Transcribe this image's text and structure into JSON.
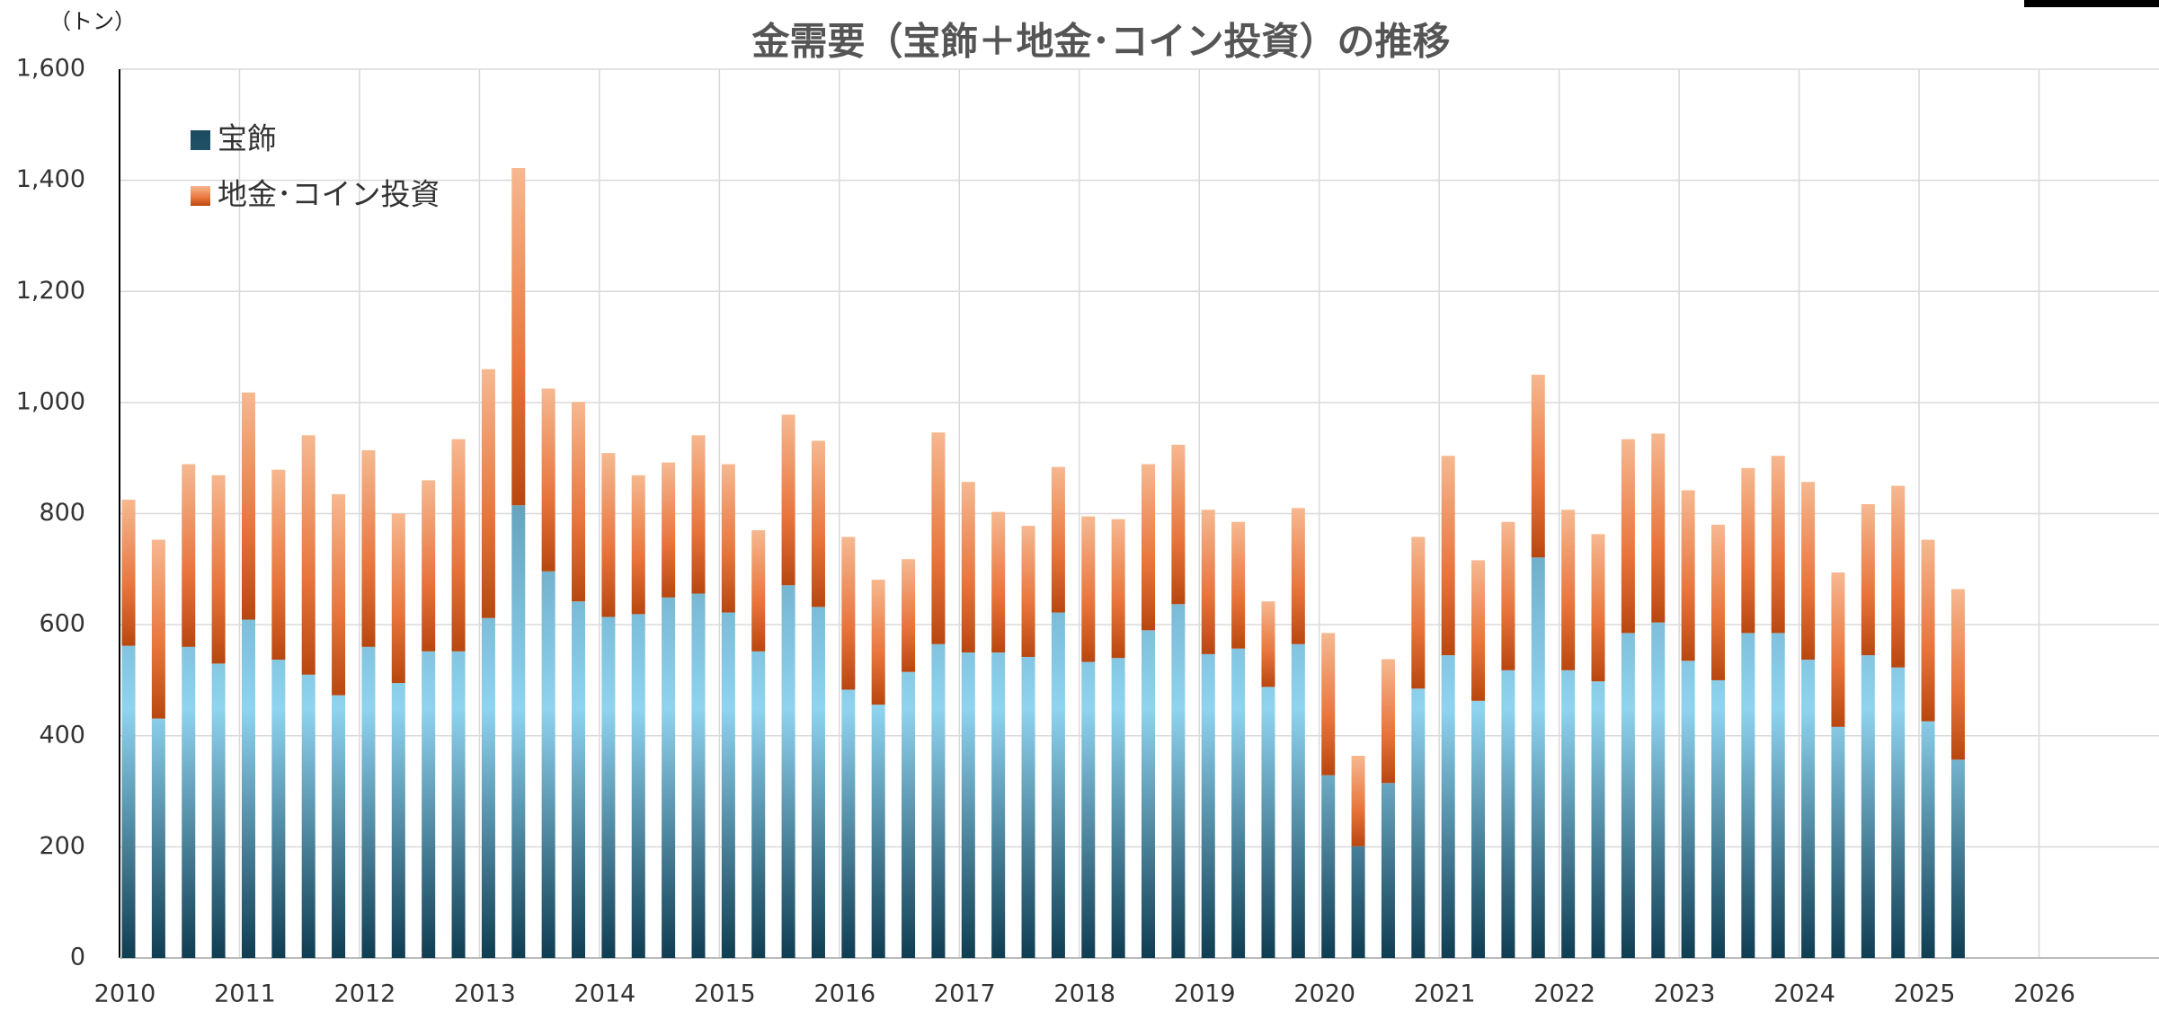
{
  "chart_data": {
    "type": "bar",
    "stacked": true,
    "title": "金需要（宝飾＋地金･コイン投資）の推移",
    "y_unit": "（トン）",
    "categories": [
      "2010",
      null,
      null,
      null,
      "2011",
      null,
      null,
      null,
      "2012",
      null,
      null,
      null,
      "2013",
      null,
      null,
      null,
      "2014",
      null,
      null,
      null,
      "2015",
      null,
      null,
      null,
      "2016",
      null,
      null,
      null,
      "2017",
      null,
      null,
      null,
      "2018",
      null,
      null,
      null,
      "2019",
      null,
      null,
      null,
      "2020",
      null,
      null,
      null,
      "2021",
      null,
      null,
      null,
      "2022",
      null,
      null,
      null,
      "2023",
      null,
      null,
      null,
      "2024",
      null,
      null,
      null,
      "2025",
      null,
      null,
      null,
      "2026",
      null,
      null,
      null
    ],
    "series": [
      {
        "name": "宝飾",
        "color": "#1d6482",
        "values": [
          562,
          431,
          560,
          530,
          609,
          537,
          510,
          473,
          560,
          495,
          552,
          552,
          612,
          815,
          696,
          642,
          614,
          619,
          649,
          656,
          622,
          552,
          671,
          632,
          483,
          456,
          515,
          565,
          550,
          550,
          542,
          622,
          533,
          540,
          590,
          637,
          547,
          557,
          488,
          565,
          329,
          201,
          315,
          485,
          545,
          463,
          518,
          721,
          518,
          498,
          585,
          604,
          535,
          500,
          585,
          585,
          537,
          416,
          545,
          523,
          426,
          357,
          null,
          null,
          null,
          null,
          null,
          null
        ]
      },
      {
        "name": "地金･コイン投資",
        "color": "#e8743b",
        "values": [
          263,
          322,
          329,
          339,
          409,
          342,
          431,
          362,
          354,
          305,
          308,
          382,
          448,
          607,
          329,
          359,
          295,
          250,
          243,
          285,
          267,
          218,
          307,
          299,
          275,
          225,
          203,
          381,
          307,
          253,
          236,
          262,
          262,
          250,
          299,
          287,
          260,
          228,
          154,
          245,
          256,
          163,
          223,
          273,
          359,
          253,
          267,
          329,
          289,
          265,
          349,
          340,
          307,
          280,
          297,
          319,
          320,
          278,
          272,
          327,
          327,
          307,
          null,
          null,
          null,
          null,
          null,
          null
        ]
      }
    ],
    "ylim": [
      0,
      1600
    ],
    "yticks": [
      0,
      {
        "value": 200,
        "label": "200"
      },
      {
        "value": 400,
        "label": "400"
      },
      {
        "value": 600,
        "label": "600"
      },
      {
        "value": 800,
        "label": "800"
      },
      {
        "value": 1000,
        "label": "1,000"
      },
      {
        "value": 1200,
        "label": "1,200"
      },
      {
        "value": 1400,
        "label": "1,400"
      },
      {
        "value": 1600,
        "label": "1,600"
      }
    ],
    "grid": true,
    "legend": "top-left"
  }
}
